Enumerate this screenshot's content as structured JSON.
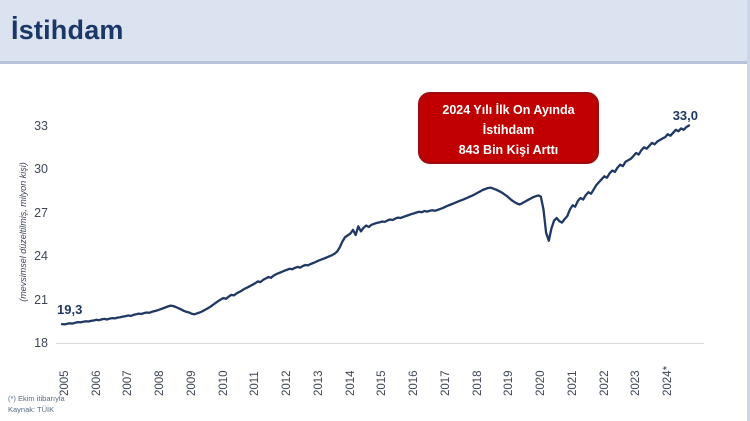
{
  "header": {
    "title": "İstihdam"
  },
  "callout": {
    "line1": "2024 Yılı İlk On Ayında",
    "line2": "İstihdam",
    "line3": "843 Bin Kişi Arttı"
  },
  "footnotes": {
    "note": "(*) Ekim itibarıyla",
    "source": "Kaynak: TÜİK"
  },
  "colors": {
    "header_bg": "#dbe3f1",
    "header_border": "#b6c2da",
    "title_text": "#1b3767",
    "line": "#1f3864",
    "callout_bg": "#c00000",
    "tick_text": "#3f4757",
    "footnote_text": "#5a6a85"
  },
  "chart_data": {
    "type": "line",
    "title": "",
    "xlabel": "",
    "ylabel": "(mevsimsel düzeltilmiş, milyon kişi)",
    "ylim": [
      18,
      33
    ],
    "yticks": [
      18,
      21,
      24,
      27,
      30,
      33
    ],
    "xtick_labels": [
      "2005",
      "2006",
      "2007",
      "2008",
      "2009",
      "2010",
      "2011",
      "2012",
      "2013",
      "2014",
      "2015",
      "2016",
      "2017",
      "2018",
      "2019",
      "2020",
      "2021",
      "2022",
      "2023",
      "2024*"
    ],
    "x_start_year": 2005,
    "x_frequency": "monthly",
    "x_end": "2024-10 (Ekim)",
    "grid": false,
    "legend": false,
    "first_point_label": "19,3",
    "last_point_label": "33,0",
    "series": [
      {
        "name": "İstihdam (milyon kişi, mevsimsel düzeltilmiş)",
        "values": [
          19.3,
          19.28,
          19.33,
          19.36,
          19.34,
          19.4,
          19.44,
          19.42,
          19.47,
          19.5,
          19.48,
          19.53,
          19.55,
          19.6,
          19.57,
          19.63,
          19.66,
          19.62,
          19.68,
          19.72,
          19.7,
          19.75,
          19.78,
          19.82,
          19.85,
          19.9,
          19.87,
          19.94,
          19.98,
          20.03,
          20.0,
          20.06,
          20.1,
          20.08,
          20.15,
          20.2,
          20.25,
          20.32,
          20.38,
          20.45,
          20.52,
          20.58,
          20.55,
          20.48,
          20.4,
          20.32,
          20.22,
          20.15,
          20.1,
          20.02,
          19.98,
          20.04,
          20.1,
          20.18,
          20.28,
          20.38,
          20.5,
          20.62,
          20.75,
          20.88,
          21.0,
          21.1,
          21.05,
          21.2,
          21.32,
          21.28,
          21.42,
          21.52,
          21.62,
          21.74,
          21.82,
          21.92,
          22.02,
          22.12,
          22.25,
          22.2,
          22.35,
          22.45,
          22.55,
          22.5,
          22.65,
          22.75,
          22.82,
          22.9,
          22.98,
          23.05,
          23.12,
          23.08,
          23.18,
          23.25,
          23.2,
          23.3,
          23.38,
          23.35,
          23.45,
          23.52,
          23.6,
          23.68,
          23.75,
          23.82,
          23.9,
          23.98,
          24.05,
          24.15,
          24.3,
          24.6,
          25.0,
          25.3,
          25.42,
          25.55,
          25.8,
          25.45,
          26.05,
          25.7,
          25.95,
          26.1,
          26.0,
          26.15,
          26.22,
          26.28,
          26.32,
          26.38,
          26.35,
          26.45,
          26.52,
          26.48,
          26.58,
          26.65,
          26.62,
          26.7,
          26.76,
          26.82,
          26.88,
          26.94,
          27.0,
          27.05,
          27.02,
          27.1,
          27.06,
          27.12,
          27.16,
          27.12,
          27.18,
          27.25,
          27.32,
          27.4,
          27.48,
          27.55,
          27.62,
          27.7,
          27.78,
          27.85,
          27.92,
          28.0,
          28.08,
          28.16,
          28.25,
          28.35,
          28.45,
          28.55,
          28.62,
          28.68,
          28.72,
          28.65,
          28.58,
          28.5,
          28.4,
          28.28,
          28.15,
          28.0,
          27.85,
          27.72,
          27.62,
          27.55,
          27.65,
          27.75,
          27.85,
          27.95,
          28.05,
          28.12,
          28.18,
          28.1,
          27.2,
          25.6,
          25.05,
          25.9,
          26.45,
          26.62,
          26.4,
          26.3,
          26.55,
          26.75,
          27.2,
          27.5,
          27.4,
          27.8,
          28.0,
          27.9,
          28.2,
          28.4,
          28.3,
          28.6,
          28.9,
          29.1,
          29.3,
          29.5,
          29.4,
          29.7,
          29.9,
          29.8,
          30.1,
          30.3,
          30.2,
          30.5,
          30.6,
          30.7,
          30.9,
          31.1,
          31.0,
          31.3,
          31.5,
          31.4,
          31.6,
          31.8,
          31.7,
          31.9,
          32.0,
          32.1,
          32.2,
          32.4,
          32.3,
          32.5,
          32.7,
          32.6,
          32.8,
          32.7,
          32.9,
          33.0
        ]
      }
    ]
  }
}
